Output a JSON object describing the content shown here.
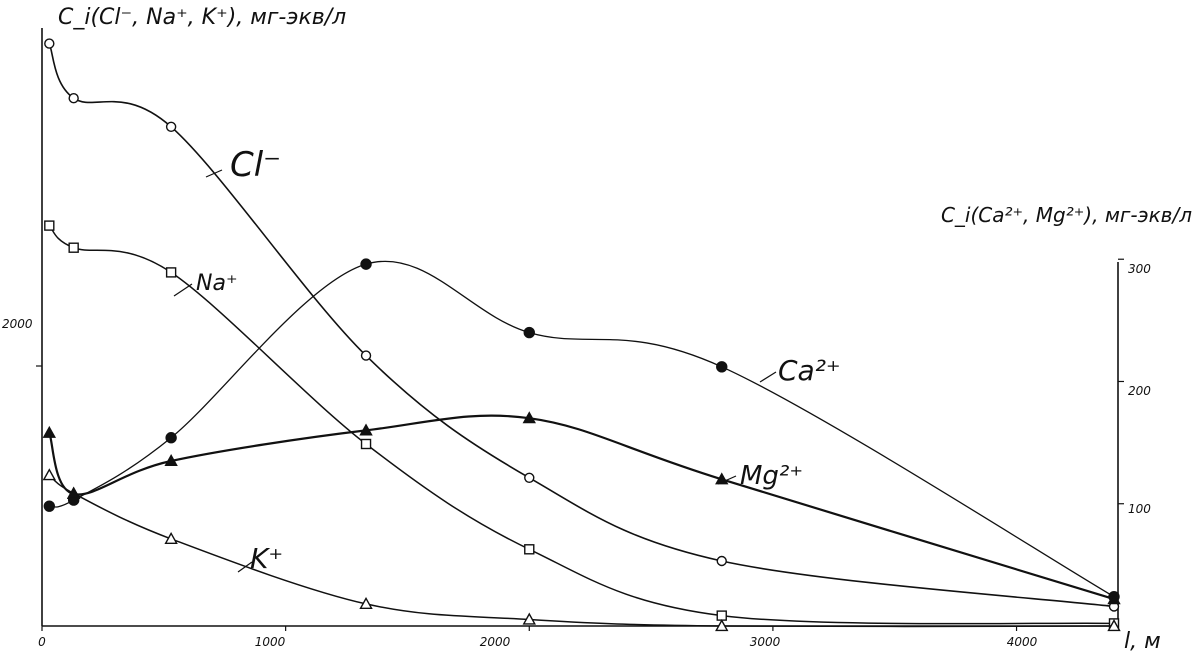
{
  "chart_data": {
    "type": "line",
    "title": "",
    "xlabel": "l, м",
    "ylabel_left": "C_i(Cl⁻, Na⁺, K⁺), мг-экв/л",
    "ylabel_right": "C_i(Ca²⁺, Mg²⁺), мг-экв/л",
    "x_ticks": [
      "0",
      "1000",
      "2000",
      "3000",
      "4000"
    ],
    "y_left_ticks": [
      "2000"
    ],
    "y_right_ticks": [
      "100",
      "200",
      "300"
    ],
    "xlim": [
      0,
      4400
    ],
    "ylim_left": [
      0,
      4600
    ],
    "ylim_right": [
      0,
      310
    ],
    "grid": false,
    "legend": "inline labels",
    "series": [
      {
        "name": "Cl⁻",
        "axis": "left",
        "marker": "open-circle",
        "points": [
          [
            30,
            4480
          ],
          [
            130,
            4060
          ],
          [
            530,
            3840
          ],
          [
            1330,
            2080
          ],
          [
            2000,
            1140
          ],
          [
            2790,
            500
          ],
          [
            4400,
            150
          ]
        ]
      },
      {
        "name": "Na⁺",
        "axis": "left",
        "marker": "open-square",
        "points": [
          [
            30,
            3080
          ],
          [
            130,
            2910
          ],
          [
            530,
            2720
          ],
          [
            1330,
            1400
          ],
          [
            2000,
            590
          ],
          [
            2790,
            80
          ],
          [
            4400,
            20
          ]
        ]
      },
      {
        "name": "K⁺",
        "axis": "left",
        "marker": "open-triangle",
        "points": [
          [
            30,
            1160
          ],
          [
            130,
            1020
          ],
          [
            530,
            670
          ],
          [
            1330,
            170
          ],
          [
            2000,
            50
          ],
          [
            2790,
            0
          ],
          [
            4400,
            0
          ]
        ]
      },
      {
        "name": "Ca²⁺",
        "axis": "right",
        "marker": "filled-circle",
        "points": [
          [
            30,
            98
          ],
          [
            130,
            103
          ],
          [
            530,
            154
          ],
          [
            1330,
            296
          ],
          [
            2000,
            240
          ],
          [
            2790,
            212
          ],
          [
            4400,
            24
          ]
        ]
      },
      {
        "name": "Mg²⁺",
        "axis": "right",
        "marker": "filled-triangle",
        "points": [
          [
            30,
            158
          ],
          [
            130,
            108
          ],
          [
            530,
            135
          ],
          [
            1330,
            160
          ],
          [
            2000,
            170
          ],
          [
            2790,
            120
          ],
          [
            4400,
            22
          ]
        ]
      }
    ]
  }
}
